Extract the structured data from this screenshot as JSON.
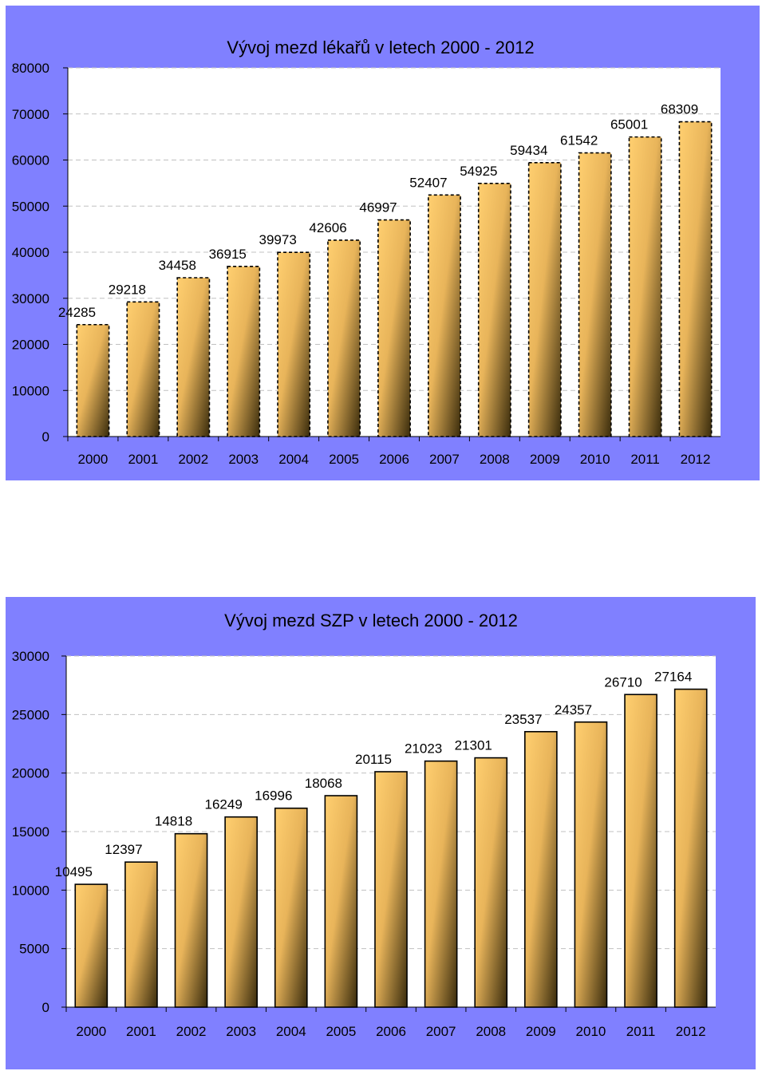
{
  "chart_data": [
    {
      "type": "bar",
      "title": "Vývoj mezd lékařů v letech 2000 - 2012",
      "categories": [
        "2000",
        "2001",
        "2002",
        "2003",
        "2004",
        "2005",
        "2006",
        "2007",
        "2008",
        "2009",
        "2010",
        "2011",
        "2012"
      ],
      "values": [
        24285,
        29218,
        34458,
        36915,
        39973,
        42606,
        46997,
        52407,
        54925,
        59434,
        61542,
        65001,
        68309
      ],
      "ylim": [
        0,
        80000
      ],
      "yticks": [
        "0",
        "10000",
        "20000",
        "30000",
        "40000",
        "50000",
        "60000",
        "70000",
        "80000"
      ],
      "grid": true,
      "legend": "none",
      "bar_border": "dashed",
      "colors": {
        "panel_bg": "#8080ff",
        "plot_bg": "#ffffff",
        "bar_light": "#ffcf70",
        "bar_dark": "#3a2c0c",
        "grid": "#c0c0c0"
      }
    },
    {
      "type": "bar",
      "title": "Vývoj mezd SZP v letech 2000 - 2012",
      "categories": [
        "2000",
        "2001",
        "2002",
        "2003",
        "2004",
        "2005",
        "2006",
        "2007",
        "2008",
        "2009",
        "2010",
        "2011",
        "2012"
      ],
      "values": [
        10495,
        12397,
        14818,
        16249,
        16996,
        18068,
        20115,
        21023,
        21301,
        23537,
        24357,
        26710,
        27164
      ],
      "ylim": [
        0,
        30000
      ],
      "yticks": [
        "0",
        "5000",
        "10000",
        "15000",
        "20000",
        "25000",
        "30000"
      ],
      "grid": true,
      "legend": "none",
      "bar_border": "solid",
      "colors": {
        "panel_bg": "#8080ff",
        "plot_bg": "#ffffff",
        "bar_light": "#ffcf70",
        "bar_dark": "#3a2c0c",
        "grid": "#c0c0c0"
      }
    }
  ]
}
